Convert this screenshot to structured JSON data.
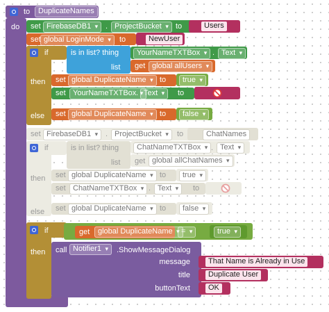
{
  "lines": [
    [
      "to",
      "DuplicateNames"
    ],
    [
      "do"
    ],
    [
      "set",
      "FirebaseDB1",
      ".",
      "ProjectBucket",
      "to",
      "Users"
    ],
    [
      "set",
      "global LoginMode",
      "to",
      "NewUser"
    ],
    [
      "if",
      "is in list? thing",
      "YourNameTXTBox",
      ".",
      "Text"
    ],
    [
      "list",
      "get",
      "global allUsers"
    ],
    [
      "then",
      "set",
      "global DuplicateName",
      "to",
      "true"
    ],
    [
      "set",
      "YourNameTXTBox",
      ".",
      "Text",
      "to"
    ],
    [
      "else",
      "set",
      "global DuplicateName",
      "to",
      "false"
    ],
    [
      "set",
      "FirebaseDB1",
      ".",
      "ProjectBucket",
      "to",
      "ChatNames"
    ],
    [
      "if",
      "is in list? thing",
      "ChatNameTXTBox",
      ".",
      "Text"
    ],
    [
      "list",
      "get",
      "global allChatNames"
    ],
    [
      "then",
      "set",
      "global DuplicateName",
      "to",
      "true"
    ],
    [
      "set",
      "ChatNameTXTBox",
      ".",
      "Text",
      "to"
    ],
    [
      "else",
      "set",
      "global DuplicateName",
      "to",
      "false"
    ],
    [
      "if",
      "get",
      "global DuplicateName",
      "=",
      "true"
    ],
    [
      "then",
      "call",
      "Notifier1",
      ".ShowMessageDialog"
    ],
    [
      "message",
      "That Name is Already in Use"
    ],
    [
      "title",
      "Duplicate User"
    ],
    [
      "buttonText",
      "OK"
    ]
  ]
}
